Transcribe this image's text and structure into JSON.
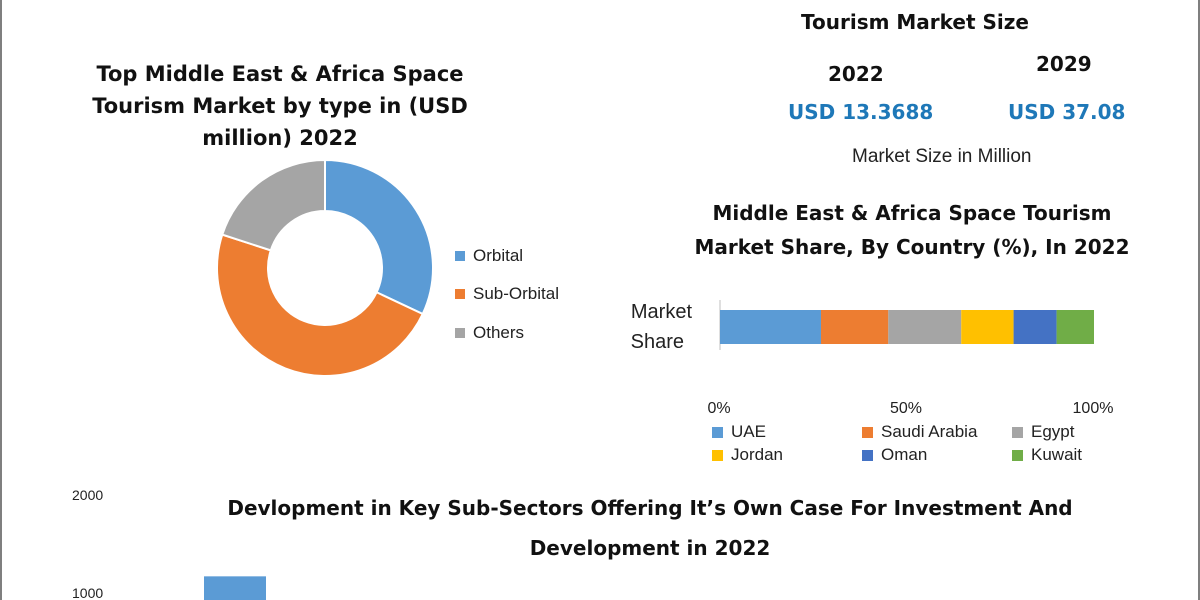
{
  "market_size": {
    "title": "Tourism Market Size",
    "year_a": "2022",
    "value_a": "USD 13.3688",
    "year_b": "2029",
    "value_b": "USD 37.08",
    "unit": "Market Size in Million",
    "colors": {
      "value": "#1e78b8"
    }
  },
  "chart_data": [
    {
      "type": "pie",
      "title": "Top Middle East & Africa Space Tourism Market by type in (USD million) 2022",
      "categories": [
        "Orbital",
        "Sub-Orbital",
        "Others"
      ],
      "values": [
        32,
        48,
        20
      ],
      "colors": [
        "#5b9bd5",
        "#ed7d31",
        "#a5a5a5"
      ],
      "donut": true,
      "legend": "right"
    },
    {
      "type": "bar",
      "orientation": "horizontal",
      "stacked": true,
      "title": "Middle East & Africa Space Tourism Market Share, By Country (%), In 2022",
      "category_label_line1": "Market",
      "category_label_line2": "Share",
      "series": [
        {
          "name": "UAE",
          "value": 27,
          "color": "#5b9bd5"
        },
        {
          "name": "Saudi Arabia",
          "value": 18,
          "color": "#ed7d31"
        },
        {
          "name": "Egypt",
          "value": 19.5,
          "color": "#a5a5a5"
        },
        {
          "name": "Jordan",
          "value": 14,
          "color": "#ffc000"
        },
        {
          "name": "Oman",
          "value": 11.5,
          "color": "#4472c4"
        },
        {
          "name": "Kuwait",
          "value": 10,
          "color": "#70ad47"
        }
      ],
      "xticks": [
        "0%",
        "50%",
        "100%"
      ],
      "xlim": [
        0,
        100
      ],
      "legend": "bottom"
    },
    {
      "type": "bar",
      "title": "Devlopment in Key Sub-Sectors Offering It’s Own Case For Investment And Development in 2022",
      "yticks": [
        "2000",
        "1000"
      ],
      "ylim": [
        0,
        2000
      ],
      "values": [
        1170
      ],
      "colors": [
        "#5b9bd5"
      ]
    }
  ]
}
